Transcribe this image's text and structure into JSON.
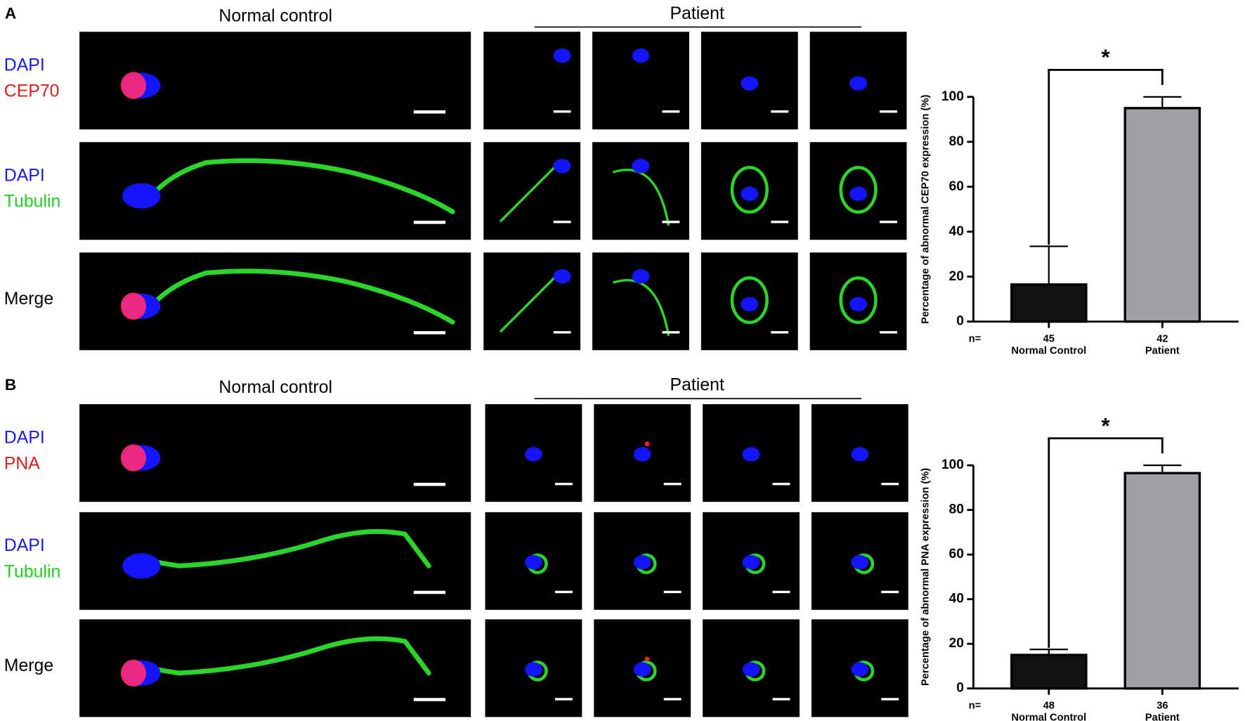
{
  "panels": [
    {
      "label": "A",
      "normal_title": "Normal control",
      "patient_title": "Patient",
      "rows": [
        {
          "stains": [
            {
              "text": "DAPI",
              "color": "#1a1ae6"
            },
            {
              "text": "CEP70",
              "color": "#e01b1b"
            }
          ]
        },
        {
          "stains": [
            {
              "text": "DAPI",
              "color": "#1a1ae6"
            },
            {
              "text": "Tubulin",
              "color": "#22cc22"
            }
          ]
        },
        {
          "stains": [
            {
              "text": "Merge",
              "color": "#000000"
            }
          ]
        }
      ]
    },
    {
      "label": "B",
      "normal_title": "Normal control",
      "patient_title": "Patient",
      "rows": [
        {
          "stains": [
            {
              "text": "DAPI",
              "color": "#1a1ae6"
            },
            {
              "text": "PNA",
              "color": "#e01b1b"
            }
          ]
        },
        {
          "stains": [
            {
              "text": "DAPI",
              "color": "#1a1ae6"
            },
            {
              "text": "Tubulin",
              "color": "#22cc22"
            }
          ]
        },
        {
          "stains": [
            {
              "text": "Merge",
              "color": "#000000"
            }
          ]
        }
      ]
    }
  ],
  "chart_data": [
    {
      "type": "bar",
      "ylabel": "Percentage of abnormal CEP70 expression (%)",
      "categories": [
        "Normal Control",
        "Patient"
      ],
      "values": [
        16.5,
        95
      ],
      "errors": [
        17,
        5
      ],
      "colors": [
        "#111111",
        "#a0a0a4"
      ],
      "n_prefix": "n=",
      "n": [
        45,
        42
      ],
      "significance": "*",
      "ylim": [
        0,
        100
      ],
      "yticks": [
        0,
        20,
        40,
        60,
        80,
        100
      ]
    },
    {
      "type": "bar",
      "ylabel": "Percentage of abnormal PNA expression (%)",
      "categories": [
        "Normal Control",
        "Patient"
      ],
      "values": [
        15,
        96.5
      ],
      "errors": [
        2.5,
        3.5
      ],
      "colors": [
        "#111111",
        "#a0a0a4"
      ],
      "n_prefix": "n=",
      "n": [
        48,
        36
      ],
      "significance": "*",
      "ylim": [
        0,
        100
      ],
      "yticks": [
        0,
        20,
        40,
        60,
        80,
        100
      ]
    }
  ]
}
